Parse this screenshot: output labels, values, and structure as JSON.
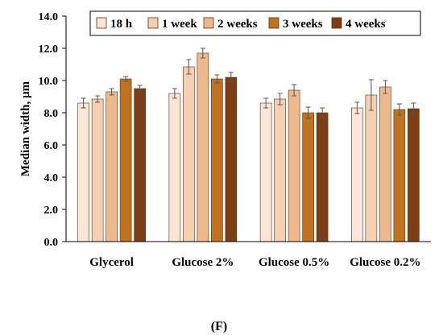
{
  "chart_data": {
    "type": "bar",
    "categories": [
      "Glycerol",
      "Glucose 2%",
      "Glucose 0.5%",
      "Glucose 0.2%"
    ],
    "series": [
      {
        "name": "18 h",
        "color": "#fbe5d6",
        "values": [
          8.6,
          9.2,
          8.6,
          8.3
        ],
        "errors": [
          0.3,
          0.3,
          0.3,
          0.35
        ]
      },
      {
        "name": "1 week",
        "color": "#f4cfb2",
        "values": [
          8.85,
          10.85,
          8.85,
          9.1
        ],
        "errors": [
          0.2,
          0.45,
          0.35,
          0.95
        ]
      },
      {
        "name": "2 weeks",
        "color": "#edb98e",
        "values": [
          9.3,
          11.7,
          9.4,
          9.6
        ],
        "errors": [
          0.2,
          0.3,
          0.35,
          0.4
        ]
      },
      {
        "name": "3 weeks",
        "color": "#bf7320",
        "values": [
          10.1,
          10.1,
          8.0,
          8.2
        ],
        "errors": [
          0.15,
          0.25,
          0.35,
          0.35
        ]
      },
      {
        "name": "4 weeks",
        "color": "#7b3f18",
        "values": [
          9.5,
          10.2,
          8.0,
          8.25
        ],
        "errors": [
          0.2,
          0.3,
          0.3,
          0.35
        ]
      }
    ],
    "ylabel": "Median width, µm",
    "xlabel": "",
    "ylim": [
      0,
      14
    ],
    "yticks": [
      "0.0",
      "2.0",
      "4.0",
      "6.0",
      "8.0",
      "10.0",
      "12.0",
      "14.0"
    ],
    "ytick_values": [
      0,
      2,
      4,
      6,
      8,
      10,
      12,
      14
    ],
    "legend_position": "top-right",
    "grid": false
  },
  "panel_label": "(F)"
}
